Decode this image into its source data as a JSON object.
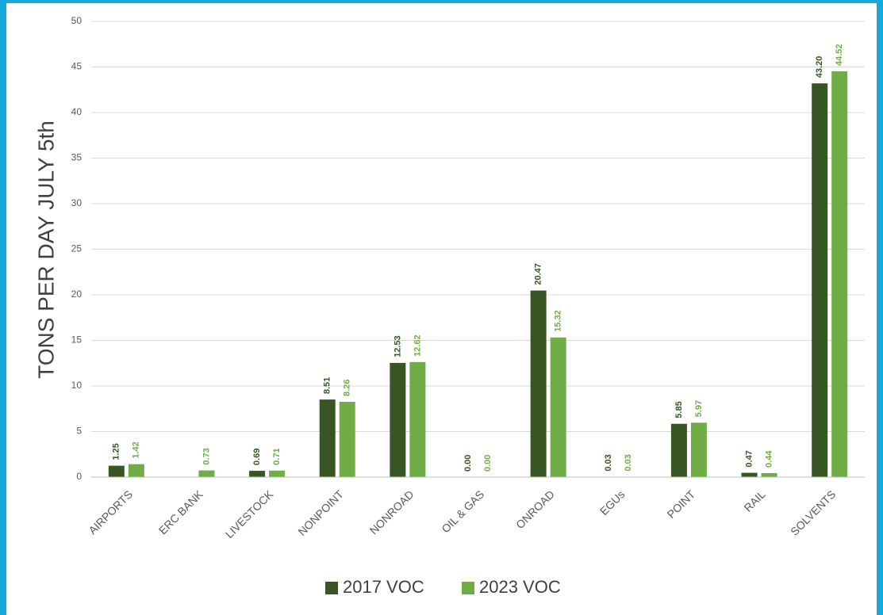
{
  "chart_data": {
    "type": "bar",
    "ylabel": "TONS PER DAY JULY 5th",
    "categories": [
      "AIRPORTS",
      "ERC BANK",
      "LIVESTOCK",
      "NONPOINT",
      "NONROAD",
      "OIL & GAS",
      "ONROAD",
      "EGUs",
      "POINT",
      "RAIL",
      "SOLVENTS"
    ],
    "series": [
      {
        "name": "2017 VOC",
        "color": "#375623",
        "values": [
          1.25,
          null,
          0.69,
          8.51,
          12.53,
          0,
          20.47,
          0.03,
          5.85,
          0.47,
          43.2
        ],
        "value_labels": [
          "1.25",
          null,
          "0.69",
          "8.51",
          "12.53",
          "0.00",
          "20.47",
          "0.03",
          "5.85",
          "0.47",
          "43.20"
        ]
      },
      {
        "name": "2023 VOC",
        "color": "#70ad47",
        "values": [
          1.42,
          0.73,
          0.71,
          8.26,
          12.62,
          0,
          15.32,
          0.03,
          5.97,
          0.44,
          44.52
        ],
        "value_labels": [
          "1.42",
          "0.73",
          "0.71",
          "8.26",
          "12.62",
          "0.00",
          "15.32",
          "0.03",
          "5.97",
          "0.44",
          "44.52"
        ]
      }
    ],
    "ylim": [
      0,
      50
    ],
    "yticks": [
      0,
      5,
      10,
      15,
      20,
      25,
      30,
      35,
      40,
      45,
      50
    ],
    "grid": true,
    "legend": "bottom"
  }
}
